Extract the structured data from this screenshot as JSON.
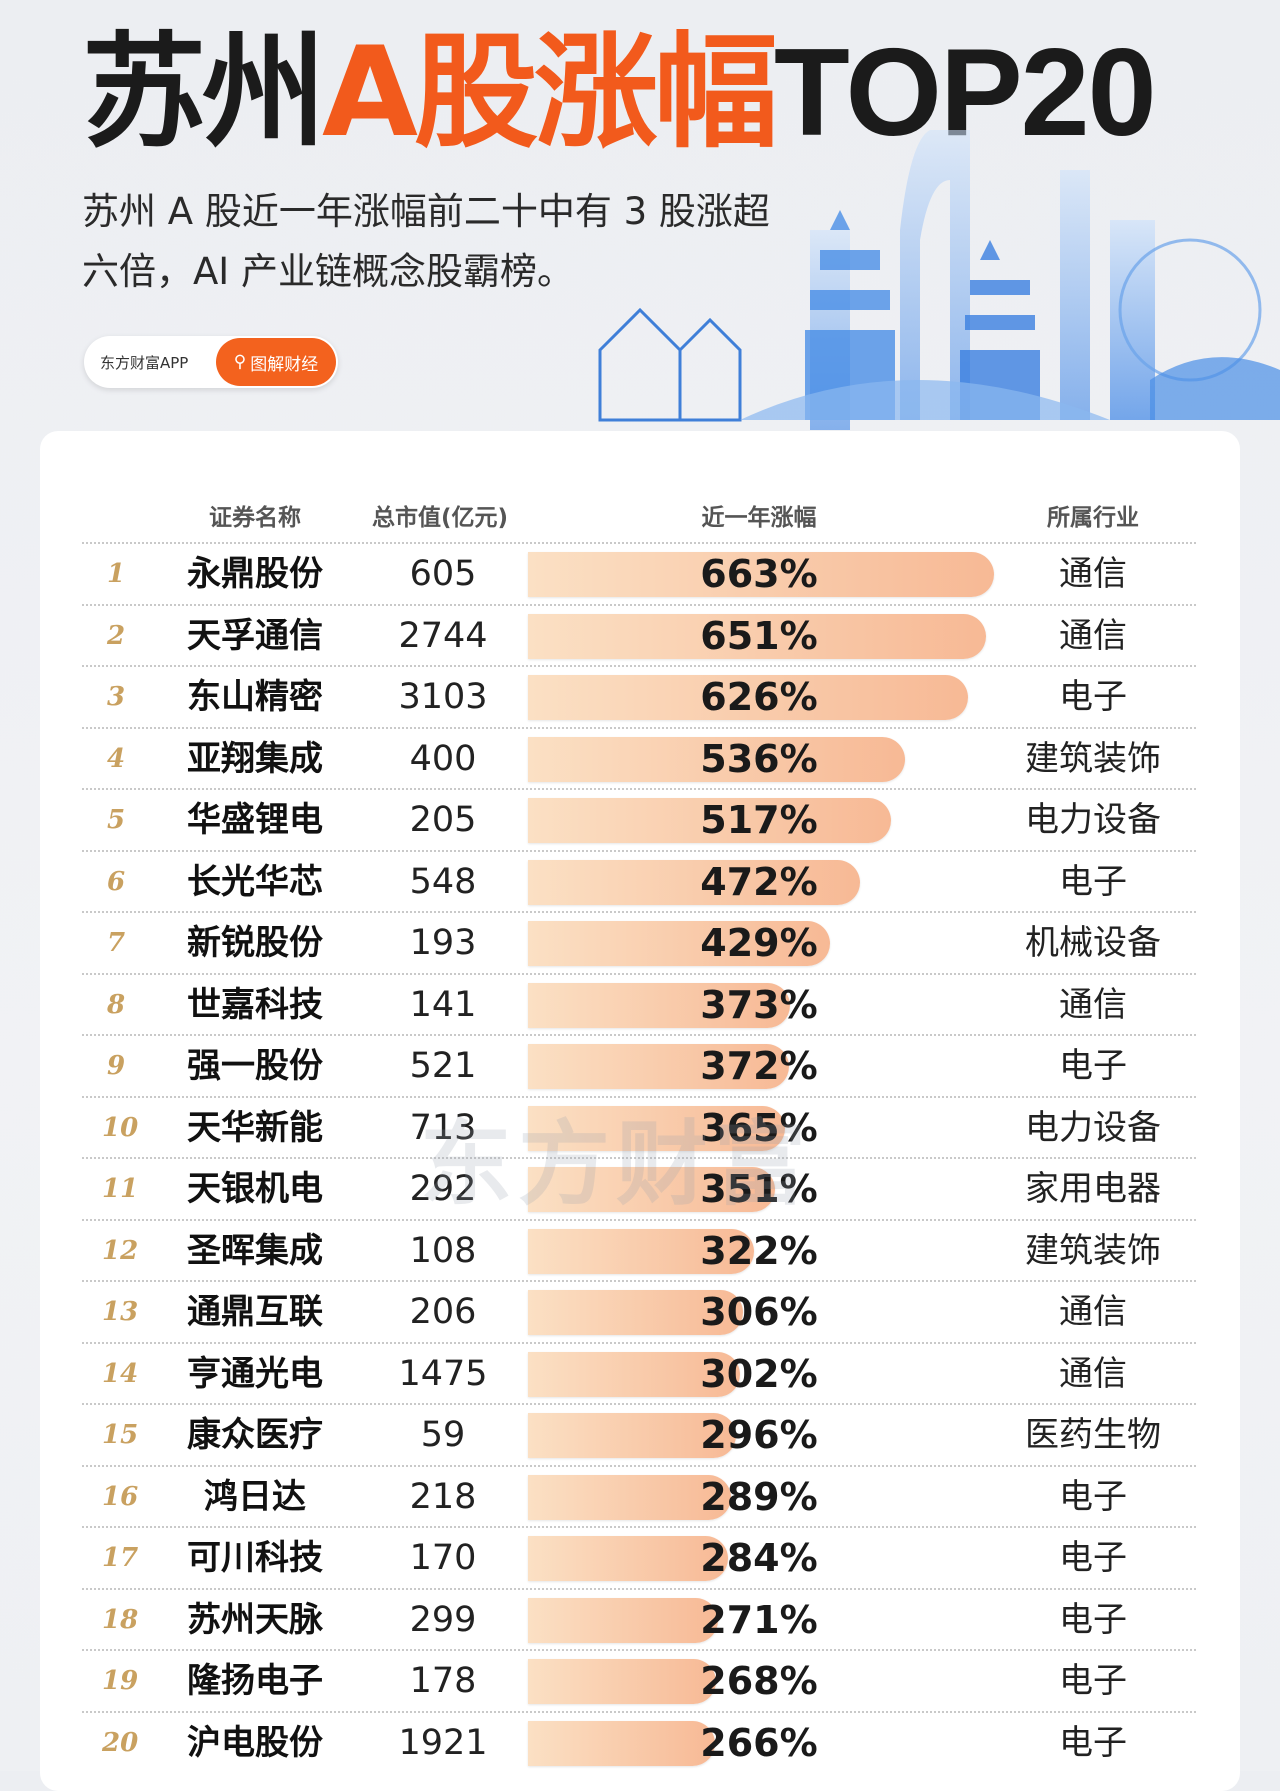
{
  "header": {
    "title_part1": "苏州",
    "title_part2": "A股涨幅",
    "title_part3": "TOP20",
    "subtitle": "苏州 A 股近一年涨幅前二十中有 3 股涨超六倍，AI 产业链概念股霸榜。",
    "brand": "东方财富APP",
    "tag_icon": "search-icon",
    "tag_label": "图解财经"
  },
  "colors": {
    "accent": "#f25a1c",
    "bar": "#f7b995",
    "rank": "#c9a160"
  },
  "watermark": "东方财富",
  "table": {
    "columns": [
      "证券名称",
      "总市值(亿元)",
      "近一年涨幅",
      "所属行业"
    ],
    "rows": [
      {
        "rank": "1",
        "name": "永鼎股份",
        "cap": "605",
        "pct": "663%",
        "gain": 663,
        "industry": "通信"
      },
      {
        "rank": "2",
        "name": "天孚通信",
        "cap": "2744",
        "pct": "651%",
        "gain": 651,
        "industry": "通信"
      },
      {
        "rank": "3",
        "name": "东山精密",
        "cap": "3103",
        "pct": "626%",
        "gain": 626,
        "industry": "电子"
      },
      {
        "rank": "4",
        "name": "亚翔集成",
        "cap": "400",
        "pct": "536%",
        "gain": 536,
        "industry": "建筑装饰"
      },
      {
        "rank": "5",
        "name": "华盛锂电",
        "cap": "205",
        "pct": "517%",
        "gain": 517,
        "industry": "电力设备"
      },
      {
        "rank": "6",
        "name": "长光华芯",
        "cap": "548",
        "pct": "472%",
        "gain": 472,
        "industry": "电子"
      },
      {
        "rank": "7",
        "name": "新锐股份",
        "cap": "193",
        "pct": "429%",
        "gain": 429,
        "industry": "机械设备"
      },
      {
        "rank": "8",
        "name": "世嘉科技",
        "cap": "141",
        "pct": "373%",
        "gain": 373,
        "industry": "通信"
      },
      {
        "rank": "9",
        "name": "强一股份",
        "cap": "521",
        "pct": "372%",
        "gain": 372,
        "industry": "电子"
      },
      {
        "rank": "10",
        "name": "天华新能",
        "cap": "713",
        "pct": "365%",
        "gain": 365,
        "industry": "电力设备"
      },
      {
        "rank": "11",
        "name": "天银机电",
        "cap": "292",
        "pct": "351%",
        "gain": 351,
        "industry": "家用电器"
      },
      {
        "rank": "12",
        "name": "圣晖集成",
        "cap": "108",
        "pct": "322%",
        "gain": 322,
        "industry": "建筑装饰"
      },
      {
        "rank": "13",
        "name": "通鼎互联",
        "cap": "206",
        "pct": "306%",
        "gain": 306,
        "industry": "通信"
      },
      {
        "rank": "14",
        "name": "亨通光电",
        "cap": "1475",
        "pct": "302%",
        "gain": 302,
        "industry": "通信"
      },
      {
        "rank": "15",
        "name": "康众医疗",
        "cap": "59",
        "pct": "296%",
        "gain": 296,
        "industry": "医药生物"
      },
      {
        "rank": "16",
        "name": "鸿日达",
        "cap": "218",
        "pct": "289%",
        "gain": 289,
        "industry": "电子"
      },
      {
        "rank": "17",
        "name": "可川科技",
        "cap": "170",
        "pct": "284%",
        "gain": 284,
        "industry": "电子"
      },
      {
        "rank": "18",
        "name": "苏州天脉",
        "cap": "299",
        "pct": "271%",
        "gain": 271,
        "industry": "电子"
      },
      {
        "rank": "19",
        "name": "隆扬电子",
        "cap": "178",
        "pct": "268%",
        "gain": 268,
        "industry": "电子"
      },
      {
        "rank": "20",
        "name": "沪电股份",
        "cap": "1921",
        "pct": "266%",
        "gain": 266,
        "industry": "电子"
      }
    ]
  }
}
